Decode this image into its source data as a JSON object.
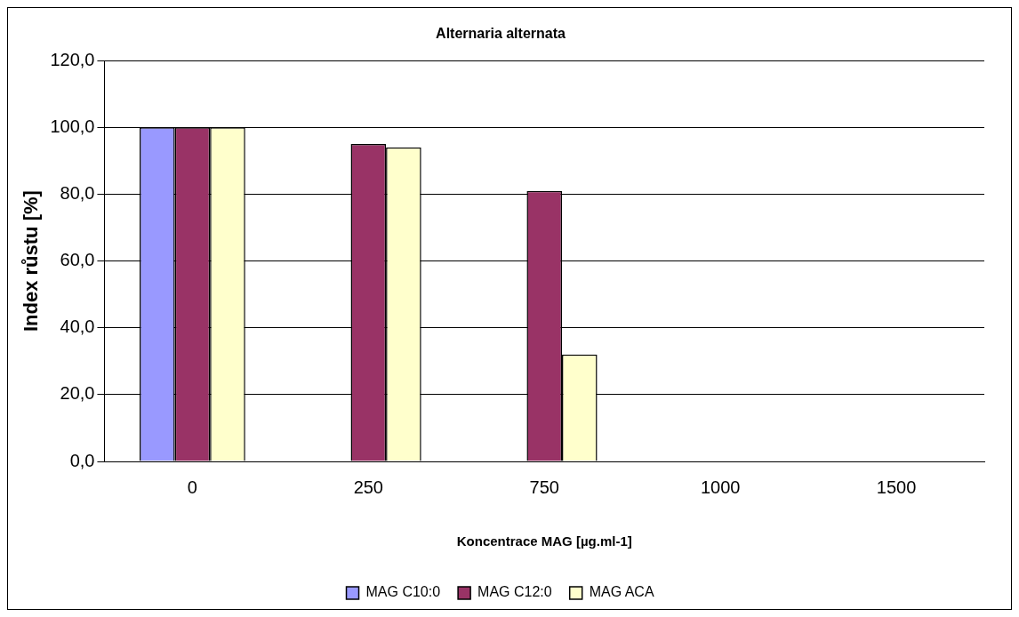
{
  "chart_data": {
    "type": "bar",
    "title": "Alternaria alternata",
    "xlabel": "Koncentrace MAG [µg.ml-1]",
    "ylabel": "Index růstu [%]",
    "categories": [
      "0",
      "250",
      "750",
      "1000",
      "1500"
    ],
    "series": [
      {
        "name": "MAG C10:0",
        "color": "#9999ff",
        "values": [
          100,
          0,
          0,
          0,
          0
        ]
      },
      {
        "name": "MAG C12:0",
        "color": "#993366",
        "values": [
          100,
          95,
          81,
          0,
          0
        ]
      },
      {
        "name": "MAG ACA",
        "color": "#ffffcc",
        "values": [
          100,
          94,
          32,
          0,
          0
        ]
      }
    ],
    "ylim": [
      0,
      120
    ],
    "yticks": [
      {
        "value": 0,
        "label": "0,0"
      },
      {
        "value": 20,
        "label": "20,0"
      },
      {
        "value": 40,
        "label": "40,0"
      },
      {
        "value": 60,
        "label": "60,0"
      },
      {
        "value": 80,
        "label": "80,0"
      },
      {
        "value": 100,
        "label": "100,0"
      },
      {
        "value": 120,
        "label": "120,0"
      }
    ],
    "grid": "y",
    "legend": "bottom"
  }
}
